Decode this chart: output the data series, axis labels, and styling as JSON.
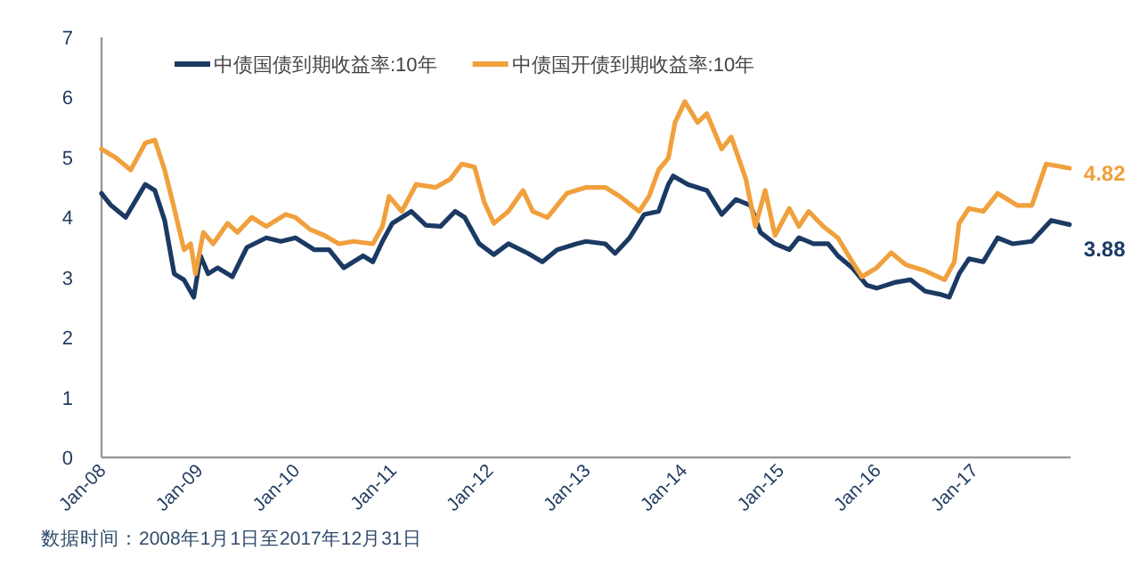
{
  "chart_data": {
    "type": "line",
    "xlim": [
      "2008-01-01",
      "2018-01-01"
    ],
    "ylim": [
      0,
      7
    ],
    "yticks": [
      0,
      1,
      2,
      3,
      4,
      5,
      6,
      7
    ],
    "xticks": [
      {
        "value": "2008-01-01",
        "label": "Jan-08"
      },
      {
        "value": "2009-01-01",
        "label": "Jan-09"
      },
      {
        "value": "2010-01-01",
        "label": "Jan-10"
      },
      {
        "value": "2011-01-01",
        "label": "Jan-11"
      },
      {
        "value": "2012-01-01",
        "label": "Jan-12"
      },
      {
        "value": "2013-01-01",
        "label": "Jan-13"
      },
      {
        "value": "2014-01-01",
        "label": "Jan-14"
      },
      {
        "value": "2015-01-01",
        "label": "Jan-15"
      },
      {
        "value": "2016-01-01",
        "label": "Jan-16"
      },
      {
        "value": "2017-01-01",
        "label": "Jan-17"
      }
    ],
    "legend": "top",
    "grid": false,
    "series": [
      {
        "name": "中债国债到期收益率:10年",
        "color": "#1b3a63",
        "x": [
          "2008-01-01",
          "2008-02-06",
          "2008-04-01",
          "2008-06-14",
          "2008-07-20",
          "2008-08-26",
          "2008-10-01",
          "2008-11-07",
          "2008-12-14",
          "2009-01-08",
          "2009-02-06",
          "2009-03-14",
          "2009-05-08",
          "2009-07-02",
          "2009-09-13",
          "2009-11-07",
          "2010-01-01",
          "2010-03-14",
          "2010-05-08",
          "2010-07-02",
          "2010-09-13",
          "2010-10-20",
          "2010-11-25",
          "2011-01-01",
          "2011-03-14",
          "2011-05-08",
          "2011-07-02",
          "2011-08-26",
          "2011-10-01",
          "2011-11-25",
          "2012-01-19",
          "2012-03-14",
          "2012-05-27",
          "2012-07-20",
          "2012-09-13",
          "2012-11-25",
          "2013-01-01",
          "2013-03-14",
          "2013-04-20",
          "2013-06-14",
          "2013-08-08",
          "2013-10-01",
          "2013-11-07",
          "2013-11-25",
          "2014-01-19",
          "2014-04-01",
          "2014-05-27",
          "2014-07-20",
          "2014-09-13",
          "2014-10-20",
          "2014-12-14",
          "2015-02-06",
          "2015-03-14",
          "2015-05-08",
          "2015-07-02",
          "2015-08-08",
          "2015-10-01",
          "2015-11-25",
          "2016-01-01",
          "2016-03-14",
          "2016-05-08",
          "2016-07-02",
          "2016-08-26",
          "2016-10-01",
          "2016-11-07",
          "2016-12-14",
          "2017-02-06",
          "2017-04-01",
          "2017-05-27",
          "2017-08-08",
          "2017-10-20",
          "2017-12-28"
        ],
        "values": [
          4.4,
          4.2,
          4.0,
          4.55,
          4.45,
          3.95,
          3.06,
          2.96,
          2.67,
          3.36,
          3.06,
          3.16,
          3.01,
          3.5,
          3.66,
          3.6,
          3.66,
          3.46,
          3.46,
          3.16,
          3.36,
          3.26,
          3.6,
          3.9,
          4.1,
          3.87,
          3.85,
          4.1,
          4.0,
          3.56,
          3.38,
          3.56,
          3.4,
          3.26,
          3.46,
          3.56,
          3.6,
          3.56,
          3.4,
          3.66,
          4.05,
          4.1,
          4.55,
          4.69,
          4.55,
          4.45,
          4.05,
          4.3,
          4.2,
          3.75,
          3.56,
          3.46,
          3.66,
          3.56,
          3.56,
          3.36,
          3.16,
          2.87,
          2.82,
          2.92,
          2.96,
          2.77,
          2.72,
          2.67,
          3.06,
          3.31,
          3.26,
          3.66,
          3.56,
          3.6,
          3.95,
          3.88
        ],
        "value_labels": [
          null,
          null,
          null,
          null,
          null,
          null,
          null,
          null,
          null,
          null,
          null,
          null,
          null,
          null,
          null,
          null,
          null,
          null,
          null,
          null,
          null,
          null,
          null,
          null,
          null,
          null,
          null,
          null,
          null,
          null,
          null,
          null,
          null,
          null,
          null,
          null,
          null,
          null,
          null,
          null,
          null,
          null,
          null,
          null,
          null,
          null,
          null,
          null,
          null,
          null,
          null,
          null,
          null,
          null,
          null,
          null,
          null,
          null,
          null,
          null,
          null,
          null,
          null,
          null,
          null,
          null,
          null,
          null,
          null,
          null,
          null,
          "3.88"
        ]
      },
      {
        "name": "中债国开债到期收益率:10年",
        "color": "#f0a03c",
        "x": [
          "2008-01-01",
          "2008-02-25",
          "2008-04-20",
          "2008-06-14",
          "2008-07-20",
          "2008-08-26",
          "2008-10-01",
          "2008-11-07",
          "2008-12-02",
          "2008-12-20",
          "2009-01-19",
          "2009-02-25",
          "2009-04-20",
          "2009-05-27",
          "2009-07-20",
          "2009-09-13",
          "2009-11-25",
          "2010-01-01",
          "2010-02-25",
          "2010-04-20",
          "2010-06-14",
          "2010-08-08",
          "2010-10-20",
          "2010-11-25",
          "2010-12-20",
          "2011-02-06",
          "2011-04-01",
          "2011-06-14",
          "2011-08-08",
          "2011-09-20",
          "2011-11-07",
          "2011-12-14",
          "2012-01-19",
          "2012-03-14",
          "2012-05-08",
          "2012-06-14",
          "2012-08-08",
          "2012-10-20",
          "2013-01-01",
          "2013-03-14",
          "2013-05-08",
          "2013-07-20",
          "2013-08-26",
          "2013-10-01",
          "2013-11-07",
          "2013-12-02",
          "2014-01-08",
          "2014-02-25",
          "2014-04-01",
          "2014-05-27",
          "2014-07-02",
          "2014-08-26",
          "2014-10-01",
          "2014-11-07",
          "2014-12-14",
          "2015-02-06",
          "2015-03-14",
          "2015-04-20",
          "2015-06-14",
          "2015-08-08",
          "2015-10-01",
          "2015-11-07",
          "2016-01-01",
          "2016-02-25",
          "2016-04-20",
          "2016-07-02",
          "2016-09-13",
          "2016-10-20",
          "2016-11-07",
          "2016-12-14",
          "2017-02-06",
          "2017-04-01",
          "2017-06-14",
          "2017-08-08",
          "2017-10-01",
          "2017-12-28"
        ],
        "values": [
          5.14,
          4.99,
          4.79,
          5.24,
          5.29,
          4.79,
          4.15,
          3.46,
          3.56,
          3.06,
          3.75,
          3.56,
          3.9,
          3.75,
          4.0,
          3.85,
          4.05,
          4.0,
          3.8,
          3.7,
          3.56,
          3.6,
          3.56,
          3.85,
          4.35,
          4.1,
          4.55,
          4.5,
          4.64,
          4.89,
          4.84,
          4.25,
          3.9,
          4.1,
          4.45,
          4.1,
          4.0,
          4.4,
          4.5,
          4.5,
          4.35,
          4.1,
          4.35,
          4.79,
          4.99,
          5.58,
          5.93,
          5.58,
          5.73,
          5.14,
          5.34,
          4.64,
          3.85,
          4.45,
          3.7,
          4.15,
          3.85,
          4.1,
          3.85,
          3.66,
          3.26,
          3.01,
          3.16,
          3.41,
          3.21,
          3.11,
          2.96,
          3.26,
          3.9,
          4.15,
          4.1,
          4.4,
          4.2,
          4.2,
          4.89,
          4.82
        ],
        "value_labels": [
          null,
          null,
          null,
          null,
          null,
          null,
          null,
          null,
          null,
          null,
          null,
          null,
          null,
          null,
          null,
          null,
          null,
          null,
          null,
          null,
          null,
          null,
          null,
          null,
          null,
          null,
          null,
          null,
          null,
          null,
          null,
          null,
          null,
          null,
          null,
          null,
          null,
          null,
          null,
          null,
          null,
          null,
          null,
          null,
          null,
          null,
          null,
          null,
          null,
          null,
          null,
          null,
          null,
          null,
          null,
          null,
          null,
          null,
          null,
          null,
          null,
          null,
          null,
          null,
          null,
          null,
          null,
          null,
          null,
          null,
          null,
          null,
          null,
          null,
          null,
          "4.82"
        ]
      }
    ],
    "annotations": [
      "数据时间：2008年1月1日至2017年12月31日"
    ]
  }
}
